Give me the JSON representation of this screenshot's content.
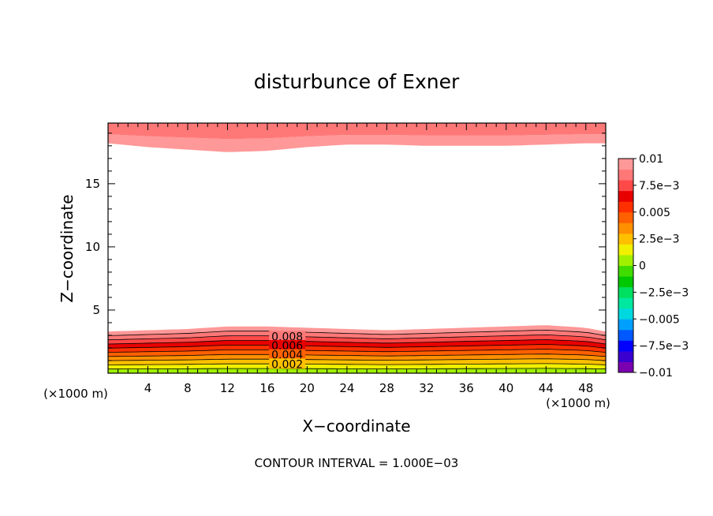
{
  "chart_data": {
    "type": "contour",
    "title": "disturbunce of Exner",
    "xlabel": "X−coordinate",
    "ylabel": "Z−coordinate",
    "x_unit_left": "(×1000 m)",
    "x_unit_right": "(×1000 m)",
    "xlim": [
      0,
      50
    ],
    "ylim": [
      0,
      19.8
    ],
    "x_ticks": [
      4,
      8,
      12,
      16,
      20,
      24,
      28,
      32,
      36,
      40,
      44,
      48
    ],
    "x_tick_labels": [
      "4",
      "8",
      "12",
      "16",
      "20",
      "24",
      "28",
      "32",
      "36",
      "40",
      "44",
      "48"
    ],
    "y_ticks": [
      5,
      10,
      15
    ],
    "y_tick_labels": [
      "5",
      "10",
      "15"
    ],
    "contour_interval_text": "CONTOUR INTERVAL = 1.000E−03",
    "colorbar": {
      "min": -0.01,
      "max": 0.01,
      "tick_labels": [
        "0.01",
        "7.5e−3",
        "0.005",
        "2.5e−3",
        "0",
        "−2.5e−3",
        "−0.005",
        "−7.5e−3",
        "−0.01"
      ],
      "colors": [
        "#7a00b0",
        "#3a00d0",
        "#0000ff",
        "#0058ff",
        "#00a0ff",
        "#00d8e0",
        "#00e8a0",
        "#00e060",
        "#00c800",
        "#40dc00",
        "#a0f000",
        "#f0f000",
        "#ffc000",
        "#ff9000",
        "#ff6000",
        "#ff3000",
        "#e80000",
        "#ff4848",
        "#ff7878",
        "#ff9898"
      ]
    },
    "contour_labels": [
      "0.008",
      "0.006",
      "0.004",
      "0.002"
    ],
    "lower_band_levels": [
      0,
      0.001,
      0.002,
      0.003,
      0.004,
      0.005,
      0.006,
      0.007,
      0.008,
      0.009,
      0.01
    ],
    "lower_band_heights_z": {
      "x": [
        0,
        4,
        8,
        12,
        16,
        20,
        24,
        28,
        32,
        36,
        40,
        44,
        48,
        50
      ],
      "top_edge_z": [
        3.3,
        3.4,
        3.5,
        3.7,
        3.7,
        3.6,
        3.5,
        3.4,
        3.5,
        3.6,
        3.7,
        3.8,
        3.6,
        3.3
      ]
    },
    "upper_band": {
      "x": [
        0,
        4,
        8,
        12,
        16,
        20,
        24,
        28,
        32,
        36,
        40,
        44,
        48,
        50
      ],
      "bottom_edge_z": [
        18.2,
        17.9,
        17.7,
        17.5,
        17.6,
        17.9,
        18.1,
        18.1,
        18.0,
        18.0,
        18.0,
        18.1,
        18.2,
        18.2
      ]
    }
  }
}
